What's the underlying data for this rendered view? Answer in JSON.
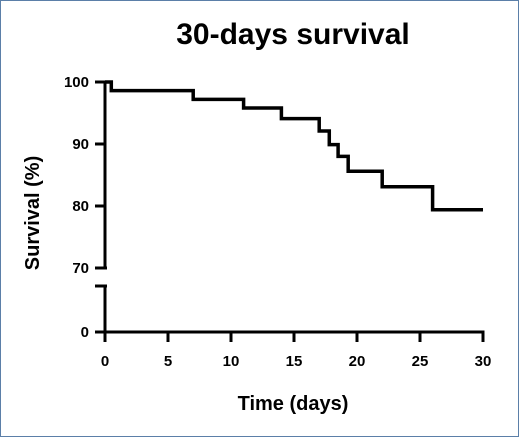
{
  "chart_data": {
    "type": "line",
    "title": "30-days survival",
    "xlabel": "Time (days)",
    "ylabel": "Survival (%)",
    "xlim": [
      0,
      30
    ],
    "x_ticks": [
      "0",
      "5",
      "10",
      "15",
      "20",
      "25",
      "30"
    ],
    "y_ticks_upper": [
      "100",
      "90",
      "80",
      "70"
    ],
    "y_ticks_lower": [
      "0"
    ],
    "y_axis_break": [
      0,
      70
    ],
    "step": true,
    "grid": false,
    "series": [
      {
        "color": "#000000",
        "x": [
          0,
          0.5,
          7,
          11,
          14,
          17,
          17.8,
          18.5,
          19.3,
          20,
          22,
          26,
          30
        ],
        "y": [
          100,
          98.6,
          97.2,
          95.8,
          94.1,
          92.1,
          89.9,
          88.0,
          85.6,
          85.6,
          83.1,
          79.4,
          79.4
        ]
      }
    ]
  }
}
